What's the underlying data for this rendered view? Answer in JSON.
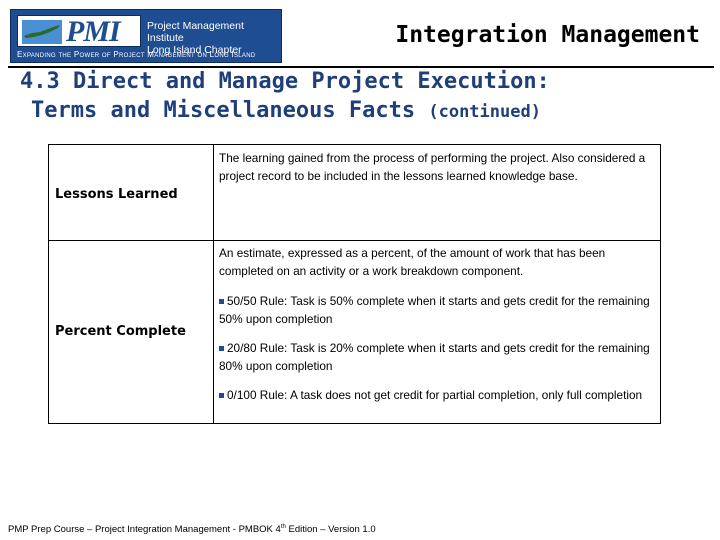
{
  "header": {
    "logo": {
      "mark_text": "PMI",
      "org_line1": "Project Management Institute",
      "org_line2": "Long Island Chapter",
      "tagline": "Expanding the Power of Project Management on Long Island"
    },
    "title": "Integration Management"
  },
  "slide": {
    "heading_line1": "4.3 Direct and Manage Project Execution:",
    "heading_line2": "Terms and Miscellaneous Facts ",
    "heading_continued": "(continued)"
  },
  "terms": [
    {
      "term": "Lessons Learned",
      "definition": "The learning gained from the process of performing the project.  Also considered a project record to be included in the lessons learned knowledge base."
    },
    {
      "term": "Percent Complete",
      "definition": "An estimate, expressed as a percent, of the amount of work that has been completed on an activity or a work breakdown component.",
      "bullets": [
        "50/50 Rule: Task is 50% complete when it starts and gets credit for the remaining 50% upon completion",
        "20/80 Rule: Task is 20% complete when it starts and gets credit for the remaining 80% upon completion",
        "0/100 Rule: A task does not get credit for partial completion, only full completion"
      ]
    }
  ],
  "footer": {
    "prefix": "PMP Prep Course – Project Integration Management - PMBOK 4",
    "superscript": "th",
    "suffix": " Edition – Version 1.0"
  },
  "colors": {
    "heading": "#1f3f7a",
    "logo_background": "#1f4d91",
    "bullet": "#1f4d91"
  }
}
